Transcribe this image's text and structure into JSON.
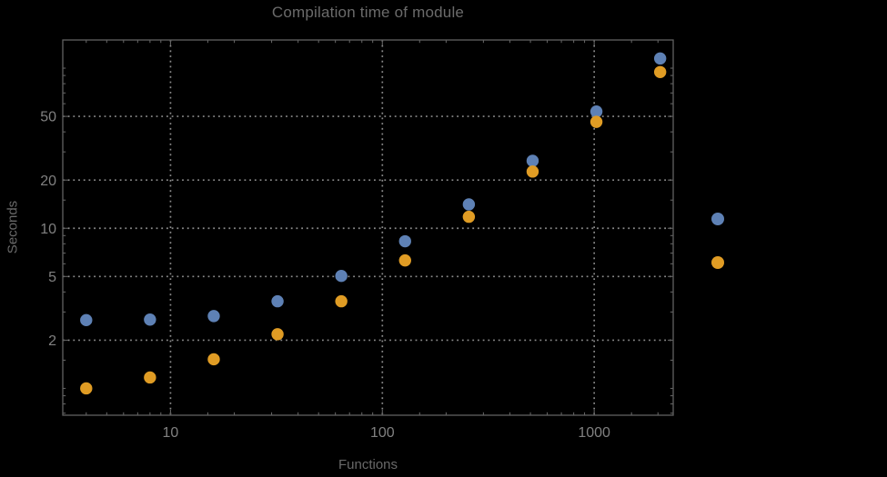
{
  "app": {
    "background_color": "#000000"
  },
  "chart_data": {
    "type": "scatter",
    "title": "Compilation time of module",
    "xlabel": "Functions",
    "ylabel": "Seconds",
    "x_scale": "log",
    "y_scale": "log",
    "xlim": [
      3.1,
      2360
    ],
    "ylim": [
      0.68,
      150
    ],
    "x_major_ticks": [
      10,
      100,
      1000
    ],
    "y_major_ticks": [
      2,
      5,
      10,
      20,
      50
    ],
    "grid": "dotted",
    "grid_color": "#8b8b8b",
    "frame_color": "#616161",
    "tick_label_color": "#808080",
    "text_color": "#6b6b6b",
    "x": [
      4,
      8,
      16,
      32,
      64,
      128,
      256,
      512,
      1024,
      2048
    ],
    "series": [
      {
        "name": "series-blue",
        "color": "#5E81B5",
        "values": [
          2.67,
          2.69,
          2.83,
          3.5,
          5.04,
          8.3,
          14.1,
          26.4,
          53.6,
          115
        ]
      },
      {
        "name": "series-orange",
        "color": "#E09C24",
        "values": [
          1.0,
          1.17,
          1.52,
          2.18,
          3.5,
          6.3,
          11.8,
          22.6,
          46.2,
          94.6
        ]
      }
    ],
    "legend": {
      "position": "outside-right",
      "markers": [
        {
          "name": "legend-marker-blue",
          "color": "#5E81B5"
        },
        {
          "name": "legend-marker-orange",
          "color": "#E09C24"
        }
      ]
    }
  }
}
